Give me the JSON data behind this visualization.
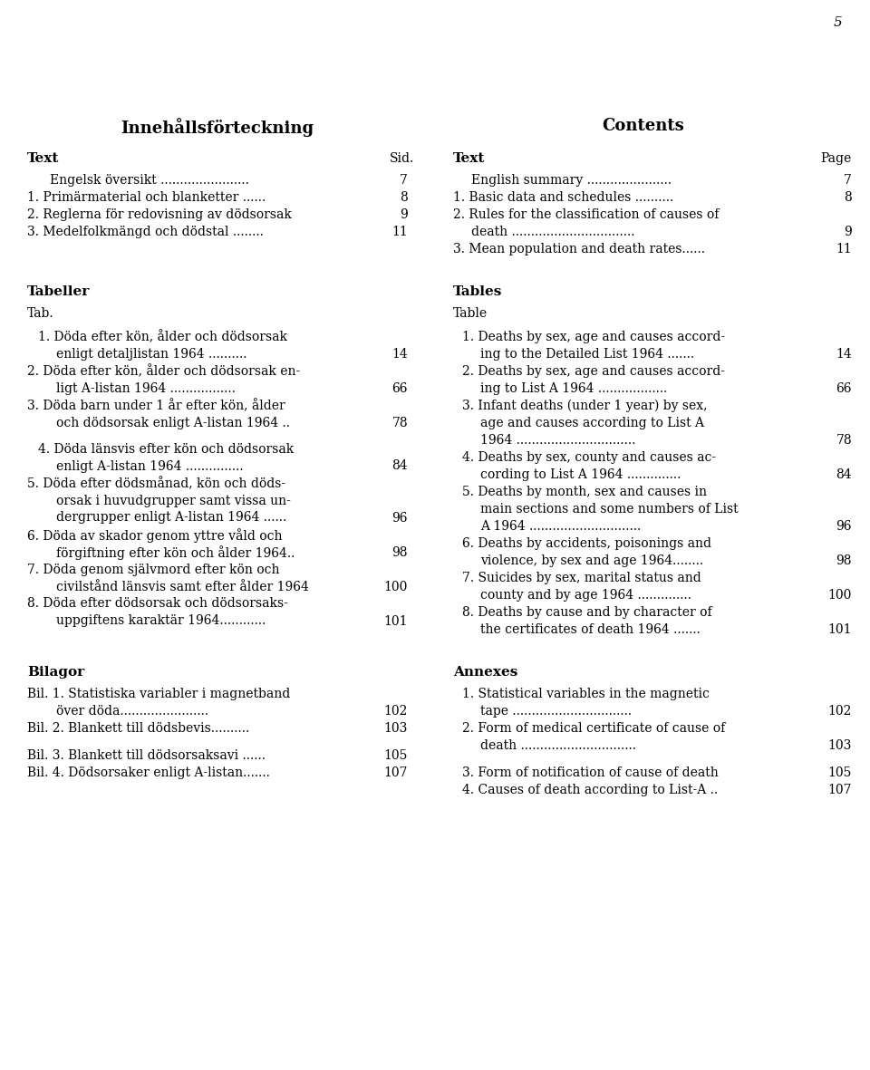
{
  "bg_color": "#ffffff",
  "page_number": "5",
  "left_title": "Innehållsförteckning",
  "right_title": "Contents",
  "figsize": [
    9.6,
    11.81
  ],
  "dpi": 100
}
